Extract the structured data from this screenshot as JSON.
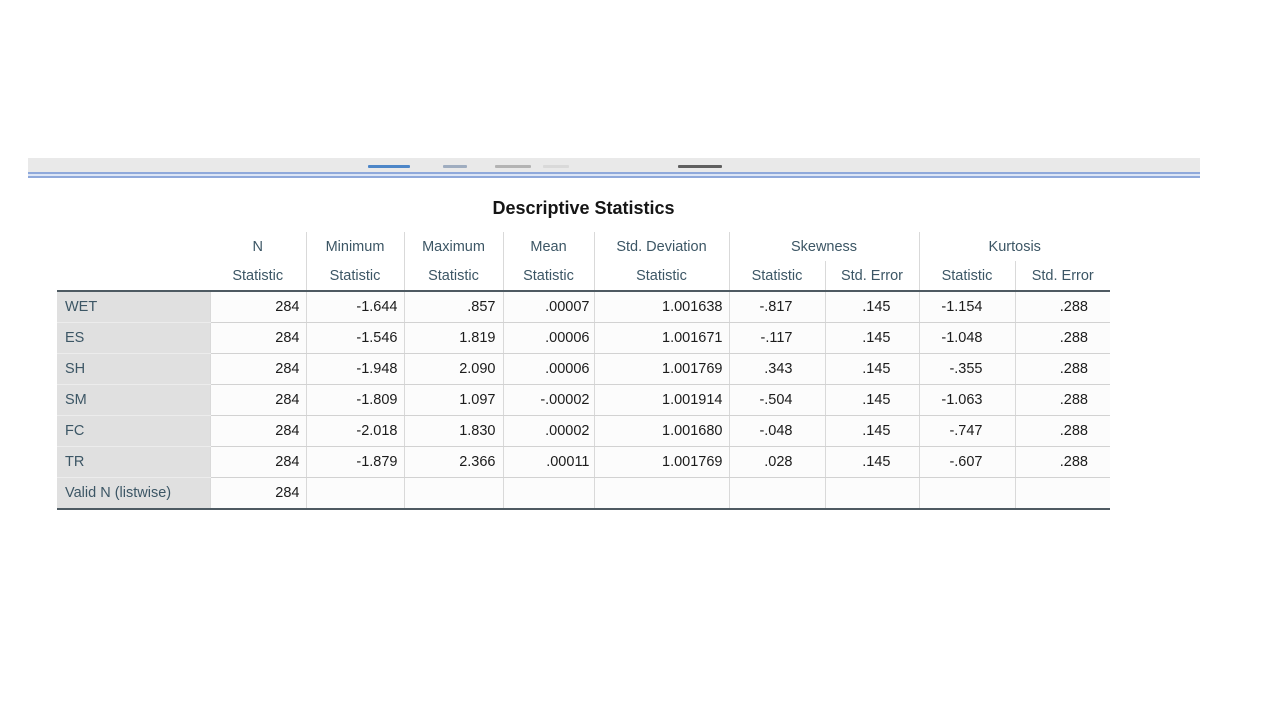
{
  "table": {
    "title": "Descriptive Statistics",
    "columns": [
      {
        "group": "N",
        "sub": [
          "Statistic"
        ]
      },
      {
        "group": "Minimum",
        "sub": [
          "Statistic"
        ]
      },
      {
        "group": "Maximum",
        "sub": [
          "Statistic"
        ]
      },
      {
        "group": "Mean",
        "sub": [
          "Statistic"
        ]
      },
      {
        "group": "Std. Deviation",
        "sub": [
          "Statistic"
        ]
      },
      {
        "group": "Skewness",
        "sub": [
          "Statistic",
          "Std. Error"
        ]
      },
      {
        "group": "Kurtosis",
        "sub": [
          "Statistic",
          "Std. Error"
        ]
      }
    ],
    "rows": [
      {
        "label": "WET",
        "values": [
          "284",
          "-1.644",
          ".857",
          ".00007",
          "1.001638",
          "-.817",
          ".145",
          "-1.154",
          ".288"
        ]
      },
      {
        "label": "ES",
        "values": [
          "284",
          "-1.546",
          "1.819",
          ".00006",
          "1.001671",
          "-.117",
          ".145",
          "-1.048",
          ".288"
        ]
      },
      {
        "label": "SH",
        "values": [
          "284",
          "-1.948",
          "2.090",
          ".00006",
          "1.001769",
          ".343",
          ".145",
          "-.355",
          ".288"
        ]
      },
      {
        "label": "SM",
        "values": [
          "284",
          "-1.809",
          "1.097",
          "-.00002",
          "1.001914",
          "-.504",
          ".145",
          "-1.063",
          ".288"
        ]
      },
      {
        "label": "FC",
        "values": [
          "284",
          "-2.018",
          "1.830",
          ".00002",
          "1.001680",
          "-.048",
          ".145",
          "-.747",
          ".288"
        ]
      },
      {
        "label": "TR",
        "values": [
          "284",
          "-1.879",
          "2.366",
          ".00011",
          "1.001769",
          ".028",
          ".145",
          "-.607",
          ".288"
        ]
      },
      {
        "label": "Valid N (listwise)",
        "values": [
          "284",
          "",
          "",
          "",
          "",
          "",
          "",
          "",
          ""
        ]
      }
    ]
  },
  "colors": {
    "divider_blue": "#8fa9db",
    "toolbar_strip_bg": "#e9e9e9",
    "header_text": "#3c5665",
    "row_label_bg": "#e0e0e0",
    "table_rule_dark": "#4e5a62",
    "fragment_blue": "#4d86c8",
    "fragment_dark": "#5f5f5f"
  }
}
